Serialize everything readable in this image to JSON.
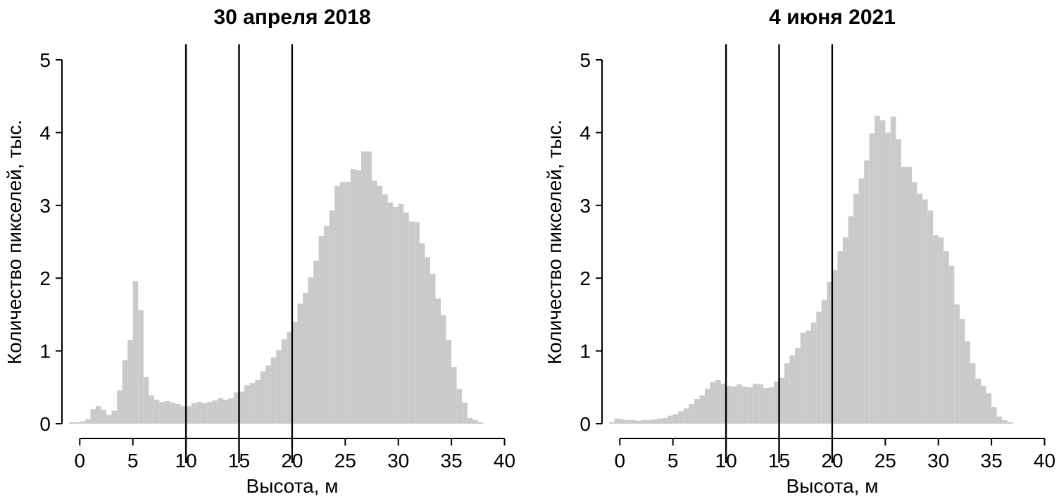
{
  "figure": {
    "background_color": "#ffffff",
    "bar_color": "#cacaca",
    "line_color": "#000000"
  },
  "chart_data": [
    {
      "type": "bar",
      "subtype": "histogram",
      "title": "30 апреля 2018",
      "xlabel": "Высота, м",
      "ylabel": "Количество пикселей, тыс.",
      "bin_width": 0.5,
      "bin_start": -1.0,
      "values": [
        0.02,
        0.02,
        0.03,
        0.06,
        0.2,
        0.24,
        0.19,
        0.12,
        0.18,
        0.46,
        0.87,
        1.15,
        1.96,
        1.56,
        0.64,
        0.39,
        0.33,
        0.3,
        0.31,
        0.29,
        0.27,
        0.24,
        0.24,
        0.28,
        0.3,
        0.28,
        0.3,
        0.32,
        0.35,
        0.33,
        0.35,
        0.43,
        0.44,
        0.53,
        0.56,
        0.6,
        0.72,
        0.8,
        0.91,
        1.01,
        1.16,
        1.26,
        1.4,
        1.65,
        1.8,
        2.01,
        2.24,
        2.58,
        2.72,
        2.93,
        3.27,
        3.32,
        3.32,
        3.5,
        3.48,
        3.74,
        3.74,
        3.34,
        3.27,
        3.15,
        3.04,
        2.98,
        3.02,
        2.9,
        2.78,
        2.77,
        2.48,
        2.29,
        2.06,
        1.72,
        1.49,
        1.15,
        0.78,
        0.48,
        0.29,
        0.08,
        0.05,
        0.02
      ],
      "xticks": [
        0,
        5,
        10,
        15,
        20,
        25,
        30,
        35,
        40
      ],
      "yticks": [
        0,
        1,
        2,
        3,
        4,
        5
      ],
      "vlines": [
        10,
        15,
        20
      ],
      "xlim": [
        0,
        40
      ],
      "ylim": [
        0,
        5.2
      ],
      "grid": false,
      "legend": "none",
      "bar_color": "#cacaca",
      "axis_color": "#000000"
    },
    {
      "type": "bar",
      "subtype": "histogram",
      "title": "4 июня 2021",
      "xlabel": "Высота, м",
      "ylabel": "Количество пикселей, тыс.",
      "bin_width": 0.5,
      "bin_start": -1.0,
      "values": [
        0.02,
        0.07,
        0.06,
        0.05,
        0.05,
        0.04,
        0.05,
        0.05,
        0.06,
        0.07,
        0.08,
        0.11,
        0.13,
        0.17,
        0.21,
        0.27,
        0.34,
        0.39,
        0.48,
        0.57,
        0.6,
        0.55,
        0.52,
        0.51,
        0.54,
        0.51,
        0.5,
        0.55,
        0.54,
        0.49,
        0.5,
        0.58,
        0.63,
        0.83,
        0.94,
        1.04,
        1.25,
        1.28,
        1.39,
        1.54,
        1.7,
        1.95,
        2.11,
        2.37,
        2.56,
        2.85,
        3.16,
        3.37,
        3.62,
        3.99,
        4.23,
        4.17,
        4.0,
        4.22,
        3.91,
        3.53,
        3.53,
        3.32,
        3.16,
        3.08,
        2.93,
        2.59,
        2.56,
        2.37,
        2.17,
        1.64,
        1.44,
        1.13,
        0.83,
        0.62,
        0.52,
        0.42,
        0.23,
        0.1,
        0.05,
        0.02
      ],
      "xticks": [
        0,
        5,
        10,
        15,
        20,
        25,
        30,
        35,
        40
      ],
      "yticks": [
        0,
        1,
        2,
        3,
        4,
        5
      ],
      "vlines": [
        10,
        15,
        20
      ],
      "xlim": [
        0,
        40
      ],
      "ylim": [
        0,
        5.2
      ],
      "grid": false,
      "legend": "none",
      "bar_color": "#cacaca",
      "axis_color": "#000000"
    }
  ]
}
